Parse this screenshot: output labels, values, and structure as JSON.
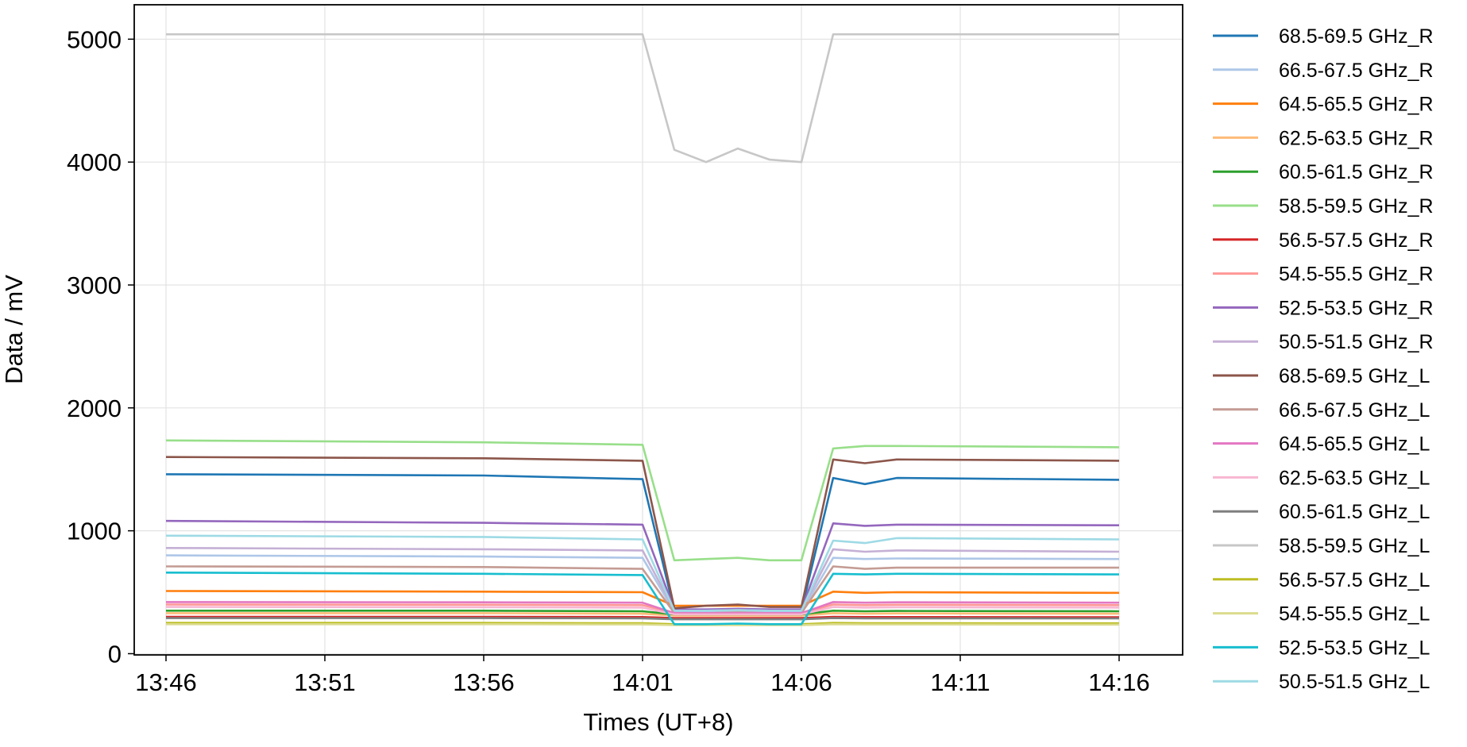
{
  "chart_data": {
    "type": "line",
    "x_label": "Times (UT+8)",
    "y_label": "Data / mV",
    "x": [
      "13:46",
      "13:56",
      "14:01",
      "14:02",
      "14:03",
      "14:04",
      "14:05",
      "14:06",
      "14:07",
      "14:08",
      "14:09",
      "14:16"
    ],
    "xlim": [
      "13:45",
      "14:18"
    ],
    "xticks": [
      "13:46",
      "13:51",
      "13:56",
      "14:01",
      "14:06",
      "14:11",
      "14:16"
    ],
    "ylim": [
      -10,
      5280
    ],
    "yticks": [
      0,
      1000,
      2000,
      3000,
      4000,
      5000
    ],
    "grid": true,
    "legend": "outside-right",
    "series": [
      {
        "name": "68.5-69.5 GHz_R",
        "color": "#1f77b4",
        "values": [
          1460,
          1450,
          1420,
          350,
          350,
          360,
          350,
          350,
          1430,
          1380,
          1430,
          1415
        ]
      },
      {
        "name": "66.5-67.5 GHz_R",
        "color": "#aec7e8",
        "values": [
          800,
          790,
          780,
          340,
          340,
          345,
          340,
          340,
          780,
          770,
          775,
          770
        ]
      },
      {
        "name": "64.5-65.5 GHz_R",
        "color": "#ff7f0e",
        "values": [
          510,
          505,
          500,
          390,
          390,
          390,
          390,
          390,
          505,
          495,
          500,
          495
        ]
      },
      {
        "name": "62.5-63.5 GHz_R",
        "color": "#ffbb78",
        "values": [
          330,
          330,
          325,
          310,
          310,
          310,
          310,
          310,
          330,
          325,
          328,
          325
        ]
      },
      {
        "name": "60.5-61.5 GHz_R",
        "color": "#2ca02c",
        "values": [
          350,
          350,
          345,
          320,
          320,
          320,
          320,
          320,
          350,
          345,
          348,
          345
        ]
      },
      {
        "name": "58.5-59.5 GHz_R",
        "color": "#98df8a",
        "values": [
          1735,
          1720,
          1700,
          760,
          770,
          780,
          760,
          760,
          1670,
          1690,
          1690,
          1680
        ]
      },
      {
        "name": "56.5-57.5 GHz_R",
        "color": "#d62728",
        "values": [
          300,
          300,
          298,
          290,
          290,
          290,
          290,
          290,
          300,
          298,
          298,
          297
        ]
      },
      {
        "name": "54.5-55.5 GHz_R",
        "color": "#ff9896",
        "values": [
          400,
          398,
          395,
          330,
          330,
          330,
          330,
          330,
          400,
          395,
          398,
          395
        ]
      },
      {
        "name": "52.5-53.5 GHz_R",
        "color": "#9467bd",
        "values": [
          1080,
          1065,
          1050,
          360,
          360,
          365,
          360,
          360,
          1060,
          1040,
          1050,
          1045
        ]
      },
      {
        "name": "50.5-51.5 GHz_R",
        "color": "#c5b0d5",
        "values": [
          860,
          850,
          840,
          350,
          350,
          355,
          350,
          350,
          850,
          830,
          840,
          830
        ]
      },
      {
        "name": "68.5-69.5 GHz_L",
        "color": "#8c564b",
        "values": [
          1600,
          1590,
          1570,
          370,
          390,
          400,
          380,
          380,
          1580,
          1550,
          1580,
          1570
        ]
      },
      {
        "name": "66.5-67.5 GHz_L",
        "color": "#c49c94",
        "values": [
          710,
          705,
          690,
          330,
          330,
          335,
          330,
          330,
          710,
          690,
          700,
          700
        ]
      },
      {
        "name": "64.5-65.5 GHz_L",
        "color": "#e377c2",
        "values": [
          420,
          418,
          415,
          330,
          330,
          330,
          330,
          330,
          420,
          415,
          418,
          415
        ]
      },
      {
        "name": "62.5-63.5 GHz_L",
        "color": "#f7b6d2",
        "values": [
          380,
          378,
          375,
          320,
          320,
          320,
          320,
          320,
          380,
          375,
          378,
          375
        ]
      },
      {
        "name": "60.5-61.5 GHz_L",
        "color": "#7f7f7f",
        "values": [
          290,
          290,
          288,
          280,
          280,
          280,
          280,
          280,
          290,
          288,
          288,
          287
        ]
      },
      {
        "name": "58.5-59.5 GHz_L",
        "color": "#c7c7c7",
        "values": [
          5040,
          5040,
          5040,
          4100,
          4000,
          4110,
          4020,
          4000,
          5040,
          5040,
          5040,
          5040
        ]
      },
      {
        "name": "56.5-57.5 GHz_L",
        "color": "#bcbd22",
        "values": [
          250,
          250,
          248,
          240,
          240,
          240,
          240,
          240,
          250,
          248,
          248,
          247
        ]
      },
      {
        "name": "54.5-55.5 GHz_L",
        "color": "#dbdb8d",
        "values": [
          240,
          240,
          238,
          232,
          232,
          232,
          232,
          232,
          240,
          238,
          238,
          237
        ]
      },
      {
        "name": "52.5-53.5 GHz_L",
        "color": "#17becf",
        "values": [
          660,
          650,
          640,
          240,
          240,
          245,
          240,
          240,
          650,
          645,
          650,
          645
        ]
      },
      {
        "name": "50.5-51.5 GHz_L",
        "color": "#9edae5",
        "values": [
          960,
          950,
          930,
          350,
          350,
          355,
          350,
          350,
          920,
          900,
          940,
          930
        ]
      }
    ]
  }
}
